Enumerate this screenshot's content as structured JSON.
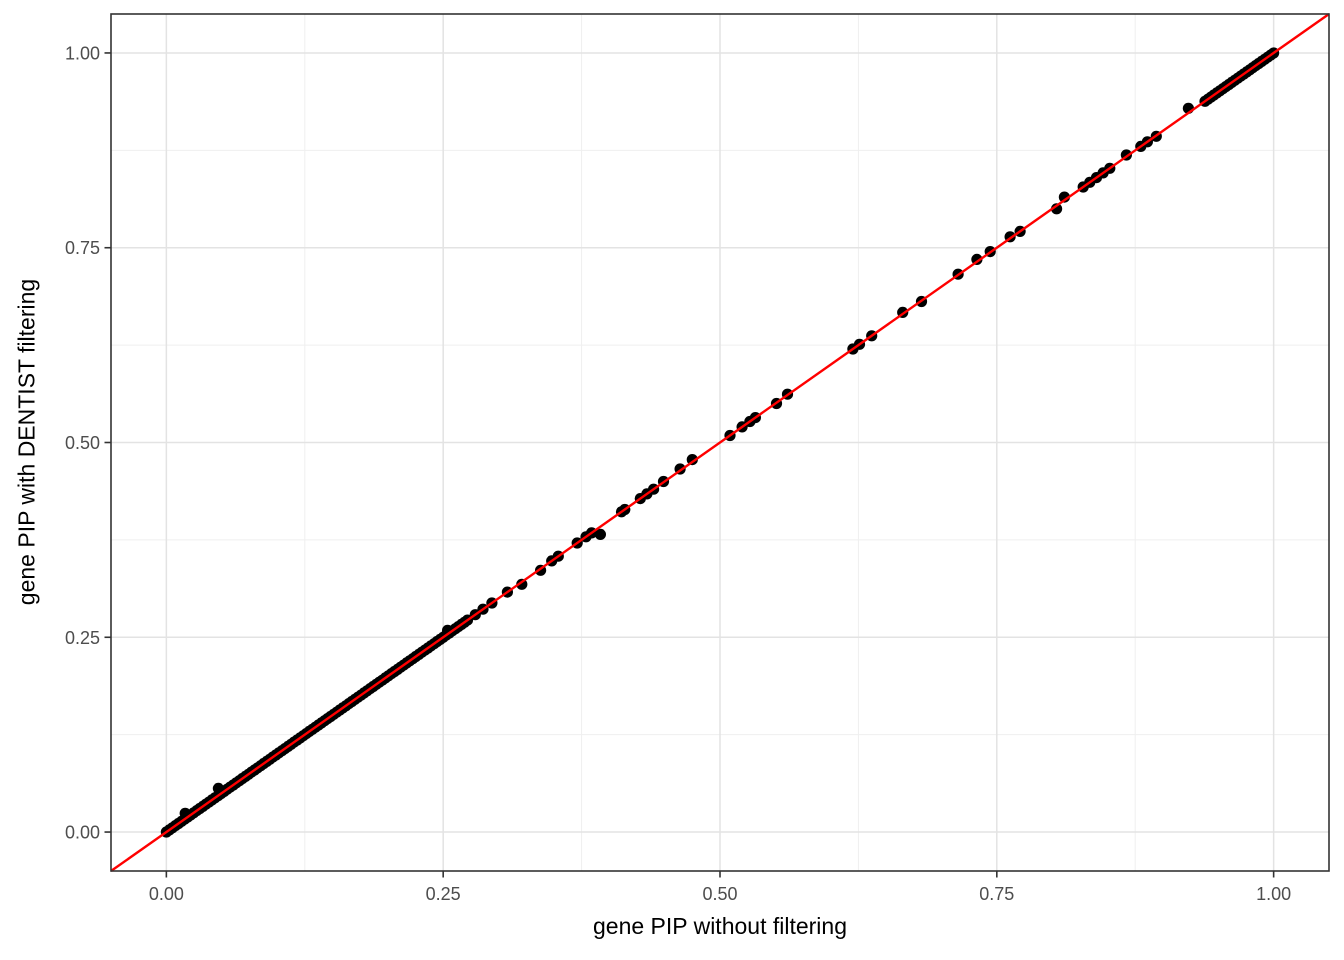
{
  "figure": {
    "background": "#FFFFFF",
    "kind": "static-plot-image"
  },
  "chart_data": {
    "type": "scatter",
    "title": "",
    "xlabel": "gene PIP without filtering",
    "ylabel": "gene PIP with DENTIST filtering",
    "xlim": [
      -0.05,
      1.05
    ],
    "ylim": [
      -0.05,
      1.05
    ],
    "x_tick_values": [
      0,
      0.25,
      0.5,
      0.75,
      1.0
    ],
    "x_tick_labels": [
      "0.00",
      "0.25",
      "0.50",
      "0.75",
      "1.00"
    ],
    "y_tick_values": [
      0,
      0.25,
      0.5,
      0.75,
      1.0
    ],
    "y_tick_labels": [
      "0.00",
      "0.25",
      "0.50",
      "0.75",
      "1.00"
    ],
    "x_minor_ticks": [
      0.125,
      0.375,
      0.625,
      0.875
    ],
    "y_minor_ticks": [
      0.125,
      0.375,
      0.625,
      0.875
    ],
    "grid": true,
    "legend_position": "none",
    "identity_line": {
      "slope": 1,
      "intercept": 0,
      "color": "#FF0000",
      "width": 2.4
    },
    "point_style": {
      "color": "#000000",
      "radius": 5.6
    },
    "dense_bands": [
      {
        "x_start": 0.0,
        "x_end": 0.272,
        "along_diagonal": true,
        "n_points": 100,
        "note": "continuous streak of overlapping points on y=x"
      },
      {
        "x_start": 0.938,
        "x_end": 1.0,
        "along_diagonal": true,
        "n_points": 24,
        "note": "continuous streak of overlapping points on y=x up to (1,1)"
      }
    ],
    "points": [
      [
        0.017,
        0.024
      ],
      [
        0.047,
        0.056
      ],
      [
        0.254,
        0.259
      ],
      [
        0.279,
        0.279
      ],
      [
        0.286,
        0.286
      ],
      [
        0.294,
        0.294
      ],
      [
        0.308,
        0.308
      ],
      [
        0.321,
        0.318
      ],
      [
        0.338,
        0.336
      ],
      [
        0.348,
        0.348
      ],
      [
        0.354,
        0.354
      ],
      [
        0.371,
        0.371
      ],
      [
        0.379,
        0.379
      ],
      [
        0.384,
        0.384
      ],
      [
        0.392,
        0.382
      ],
      [
        0.411,
        0.411
      ],
      [
        0.414,
        0.414
      ],
      [
        0.428,
        0.428
      ],
      [
        0.434,
        0.434
      ],
      [
        0.44,
        0.44
      ],
      [
        0.449,
        0.45
      ],
      [
        0.464,
        0.466
      ],
      [
        0.475,
        0.478
      ],
      [
        0.509,
        0.509
      ],
      [
        0.52,
        0.52
      ],
      [
        0.527,
        0.527
      ],
      [
        0.532,
        0.532
      ],
      [
        0.551,
        0.55
      ],
      [
        0.561,
        0.562
      ],
      [
        0.62,
        0.62
      ],
      [
        0.626,
        0.626
      ],
      [
        0.637,
        0.637
      ],
      [
        0.665,
        0.667
      ],
      [
        0.682,
        0.681
      ],
      [
        0.715,
        0.716
      ],
      [
        0.732,
        0.735
      ],
      [
        0.744,
        0.745
      ],
      [
        0.762,
        0.764
      ],
      [
        0.771,
        0.771
      ],
      [
        0.804,
        0.8
      ],
      [
        0.811,
        0.815
      ],
      [
        0.828,
        0.828
      ],
      [
        0.834,
        0.834
      ],
      [
        0.84,
        0.84
      ],
      [
        0.846,
        0.846
      ],
      [
        0.852,
        0.852
      ],
      [
        0.867,
        0.869
      ],
      [
        0.88,
        0.88
      ],
      [
        0.886,
        0.886
      ],
      [
        0.894,
        0.893
      ],
      [
        0.923,
        0.929
      ]
    ],
    "colors": {
      "panel_background": "#FFFFFF",
      "grid_major": "#E3E3E3",
      "grid_minor": "#EFEFEF",
      "panel_border": "#333333",
      "tick_mark": "#333333",
      "tick_label": "#4D4D4D",
      "axis_title": "#000000"
    }
  }
}
